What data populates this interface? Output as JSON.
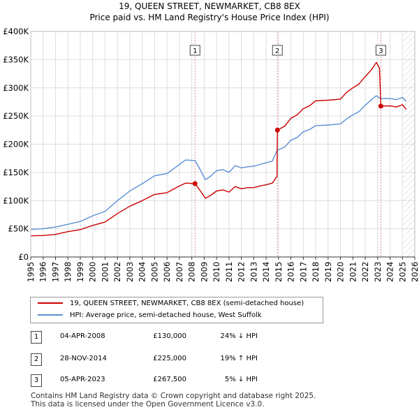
{
  "title_line1": "19, QUEEN STREET, NEWMARKET, CB8 8EX",
  "title_line2": "Price paid vs. HM Land Registry's House Price Index (HPI)",
  "colors": {
    "property": "#cc0000",
    "hpi": "#5b8fd4",
    "grid": "#dddddd",
    "axis": "#333333",
    "future_hatch": "#cccccc"
  },
  "chart_data": {
    "type": "line",
    "xlim": [
      1995,
      2026
    ],
    "ylim": [
      0,
      400000
    ],
    "yticks": [
      0,
      50000,
      100000,
      150000,
      200000,
      250000,
      300000,
      350000,
      400000
    ],
    "ytick_labels": [
      "£0",
      "£50K",
      "£100K",
      "£150K",
      "£200K",
      "£250K",
      "£300K",
      "£350K",
      "£400K"
    ],
    "xticks": [
      1995,
      1996,
      1997,
      1998,
      1999,
      2000,
      2001,
      2002,
      2003,
      2004,
      2005,
      2006,
      2007,
      2008,
      2009,
      2010,
      2011,
      2012,
      2013,
      2014,
      2015,
      2016,
      2017,
      2018,
      2019,
      2020,
      2021,
      2022,
      2023,
      2024,
      2025,
      2026
    ],
    "future_from": 2025.1,
    "series": [
      {
        "name": "19, QUEEN STREET, NEWMARKET, CB8 8EX (semi-detached house)",
        "color": "#cc0000",
        "points": [
          [
            1995,
            37500
          ],
          [
            1996,
            38000
          ],
          [
            1997,
            40000
          ],
          [
            1998,
            45000
          ],
          [
            1999,
            48500
          ],
          [
            2000,
            56000
          ],
          [
            2001,
            62000
          ],
          [
            2002,
            77000
          ],
          [
            2003,
            90000
          ],
          [
            2004,
            100000
          ],
          [
            2005,
            111000
          ],
          [
            2006,
            114000
          ],
          [
            2007,
            126000
          ],
          [
            2007.5,
            131000
          ],
          [
            2008.26,
            130000
          ],
          [
            2008.6,
            120000
          ],
          [
            2009.1,
            104000
          ],
          [
            2009.5,
            109000
          ],
          [
            2010,
            117000
          ],
          [
            2010.5,
            119000
          ],
          [
            2011,
            115000
          ],
          [
            2011.5,
            125000
          ],
          [
            2012,
            121000
          ],
          [
            2012.5,
            123000
          ],
          [
            2013,
            123000
          ],
          [
            2013.5,
            126000
          ],
          [
            2014,
            128000
          ],
          [
            2014.5,
            131000
          ],
          [
            2014.88,
            143000
          ],
          [
            2014.91,
            225000
          ],
          [
            2015.5,
            232000
          ],
          [
            2016,
            246000
          ],
          [
            2016.5,
            252000
          ],
          [
            2017,
            263000
          ],
          [
            2017.5,
            268000
          ],
          [
            2018,
            277000
          ],
          [
            2019,
            278000
          ],
          [
            2020,
            280000
          ],
          [
            2020.5,
            292000
          ],
          [
            2021,
            300000
          ],
          [
            2021.5,
            307000
          ],
          [
            2022,
            320000
          ],
          [
            2022.5,
            332000
          ],
          [
            2022.9,
            345000
          ],
          [
            2023.15,
            335000
          ],
          [
            2023.26,
            267500
          ],
          [
            2024,
            268000
          ],
          [
            2024.5,
            266000
          ],
          [
            2025,
            270000
          ],
          [
            2025.3,
            262000
          ]
        ]
      },
      {
        "name": "HPI: Average price, semi-detached house, West Suffolk",
        "color": "#5b8fd4",
        "points": [
          [
            1995,
            49000
          ],
          [
            1996,
            50000
          ],
          [
            1997,
            53000
          ],
          [
            1998,
            58000
          ],
          [
            1999,
            63000
          ],
          [
            2000,
            73000
          ],
          [
            2001,
            81000
          ],
          [
            2002,
            100000
          ],
          [
            2003,
            117000
          ],
          [
            2004,
            130000
          ],
          [
            2005,
            144000
          ],
          [
            2006,
            148000
          ],
          [
            2007,
            164000
          ],
          [
            2007.5,
            172000
          ],
          [
            2008.26,
            171000
          ],
          [
            2008.6,
            158000
          ],
          [
            2009.1,
            137000
          ],
          [
            2009.5,
            143000
          ],
          [
            2010,
            153000
          ],
          [
            2010.5,
            155000
          ],
          [
            2011,
            150000
          ],
          [
            2011.5,
            162000
          ],
          [
            2012,
            158000
          ],
          [
            2012.5,
            160000
          ],
          [
            2013,
            161000
          ],
          [
            2013.5,
            164000
          ],
          [
            2014,
            167000
          ],
          [
            2014.5,
            170000
          ],
          [
            2014.88,
            189000
          ],
          [
            2015.5,
            195000
          ],
          [
            2016,
            207000
          ],
          [
            2016.5,
            212000
          ],
          [
            2017,
            222000
          ],
          [
            2017.5,
            226000
          ],
          [
            2018,
            233000
          ],
          [
            2019,
            234000
          ],
          [
            2020,
            236000
          ],
          [
            2020.5,
            245000
          ],
          [
            2021,
            252000
          ],
          [
            2021.5,
            258000
          ],
          [
            2022,
            269000
          ],
          [
            2022.5,
            279000
          ],
          [
            2022.9,
            286000
          ],
          [
            2023.15,
            282000
          ],
          [
            2023.26,
            281000
          ],
          [
            2024,
            281000
          ],
          [
            2024.5,
            279000
          ],
          [
            2025,
            283000
          ],
          [
            2025.3,
            276000
          ]
        ]
      }
    ],
    "sales": [
      {
        "label": "1",
        "x": 2008.26,
        "y": 130000
      },
      {
        "label": "2",
        "x": 2014.91,
        "y": 225000
      },
      {
        "label": "3",
        "x": 2023.26,
        "y": 267500
      }
    ]
  },
  "legend": {
    "property_label": "19, QUEEN STREET, NEWMARKET, CB8 8EX (semi-detached house)",
    "hpi_label": "HPI: Average price, semi-detached house, West Suffolk"
  },
  "transactions": [
    {
      "num": "1",
      "date": "04-APR-2008",
      "price": "£130,000",
      "hpi": "24% ↓ HPI"
    },
    {
      "num": "2",
      "date": "28-NOV-2014",
      "price": "£225,000",
      "hpi": "19% ↑ HPI"
    },
    {
      "num": "3",
      "date": "05-APR-2023",
      "price": "£267,500",
      "hpi": "5% ↓ HPI"
    }
  ],
  "footer": {
    "line1": "Contains HM Land Registry data © Crown copyright and database right 2025.",
    "line2": "This data is licensed under the Open Government Licence v3.0."
  }
}
